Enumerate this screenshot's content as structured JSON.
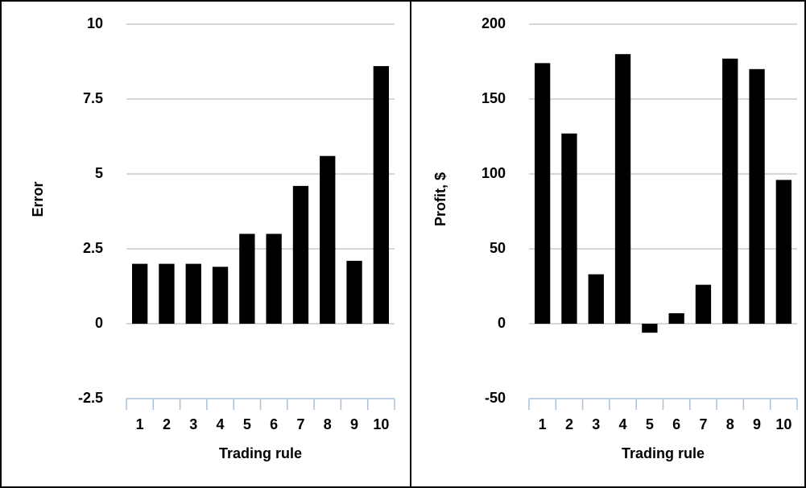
{
  "chart_data": [
    {
      "type": "bar",
      "x_label": "Trading rule",
      "y_label": "Error",
      "categories": [
        "1",
        "2",
        "3",
        "4",
        "5",
        "6",
        "7",
        "8",
        "9",
        "10"
      ],
      "values": [
        2,
        2,
        2,
        1.9,
        3,
        3,
        4.6,
        5.6,
        2.1,
        8.6
      ],
      "color": "#000000",
      "ylim": [
        -2.5,
        10
      ],
      "yticks": [
        -2.5,
        0,
        2.5,
        5,
        7.5,
        10
      ],
      "grid": true
    },
    {
      "type": "bar",
      "x_label": "Trading rule",
      "y_label": "Profit, $",
      "categories": [
        "1",
        "2",
        "3",
        "4",
        "5",
        "6",
        "7",
        "8",
        "9",
        "10"
      ],
      "values": [
        174,
        127,
        33,
        180,
        -6,
        7,
        26,
        177,
        170,
        96
      ],
      "color": "#000000",
      "ylim": [
        -50,
        200
      ],
      "yticks": [
        -50,
        0,
        50,
        100,
        150,
        200
      ],
      "grid": true
    }
  ]
}
